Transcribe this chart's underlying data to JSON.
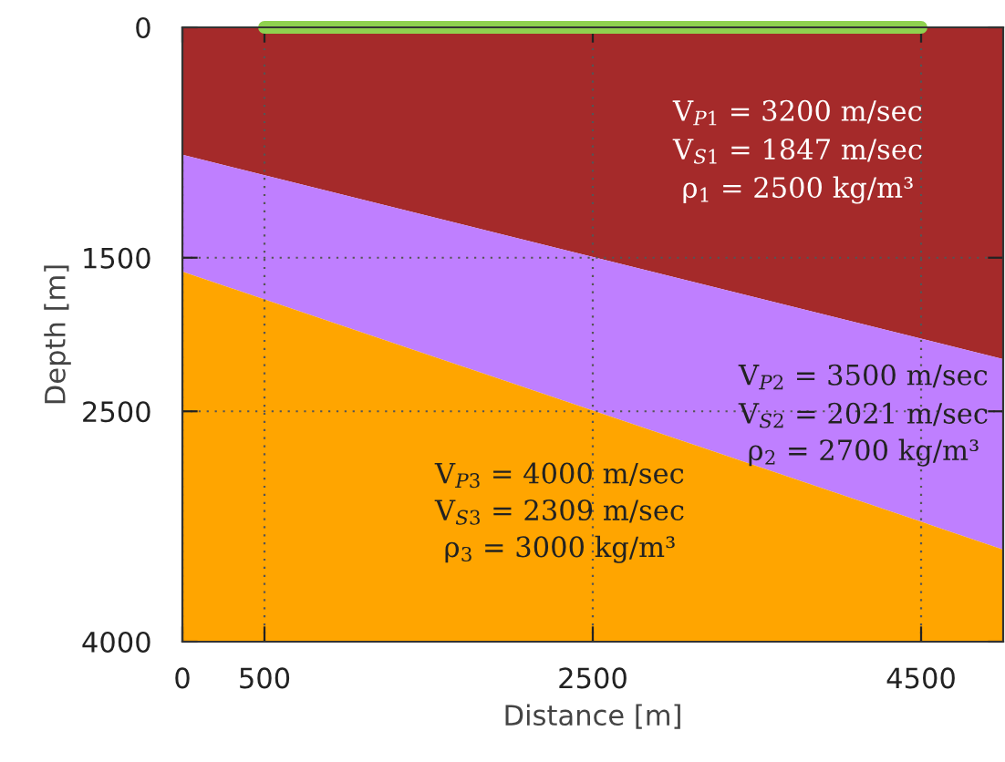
{
  "chart_data": {
    "type": "area",
    "stacked": true,
    "xlabel": "Distance [m]",
    "ylabel": "Depth [m]",
    "x": [
      0,
      5000
    ],
    "series": [
      {
        "color": "#a52a2a",
        "values": [
          830,
          2160
        ]
      },
      {
        "color": "#bf7fff",
        "values": [
          760,
          1240
        ]
      },
      {
        "color": "#ffa500",
        "values": [
          2410,
          600
        ]
      },
      {
        "type": "line",
        "color": "#8fd14f",
        "x": [
          500,
          4500
        ],
        "values": [
          0,
          0
        ]
      }
    ],
    "xlim": [
      0,
      5000
    ],
    "ylim": [
      4000,
      0
    ],
    "xticks": [
      0,
      500,
      2500,
      4500
    ],
    "yticks": [
      0,
      1500,
      2500,
      4000
    ],
    "grid": true,
    "legend": false,
    "annotations": [
      "V$_{P1}$ = 3200 m/sec",
      "V$_{S1}$ = 1847 m/sec",
      "ρ$_{1}$ = 2500 kg/m³",
      "V$_{P2}$ = 3500 m/sec",
      "V$_{S2}$ = 2021 m/sec",
      "ρ$_{2}$ = 2700 kg/m³",
      "V$_{P3}$ = 4000 m/sec",
      "V$_{S3}$ = 2309 m/sec",
      "ρ$_{3}$ = 3000 kg/m³"
    ]
  }
}
